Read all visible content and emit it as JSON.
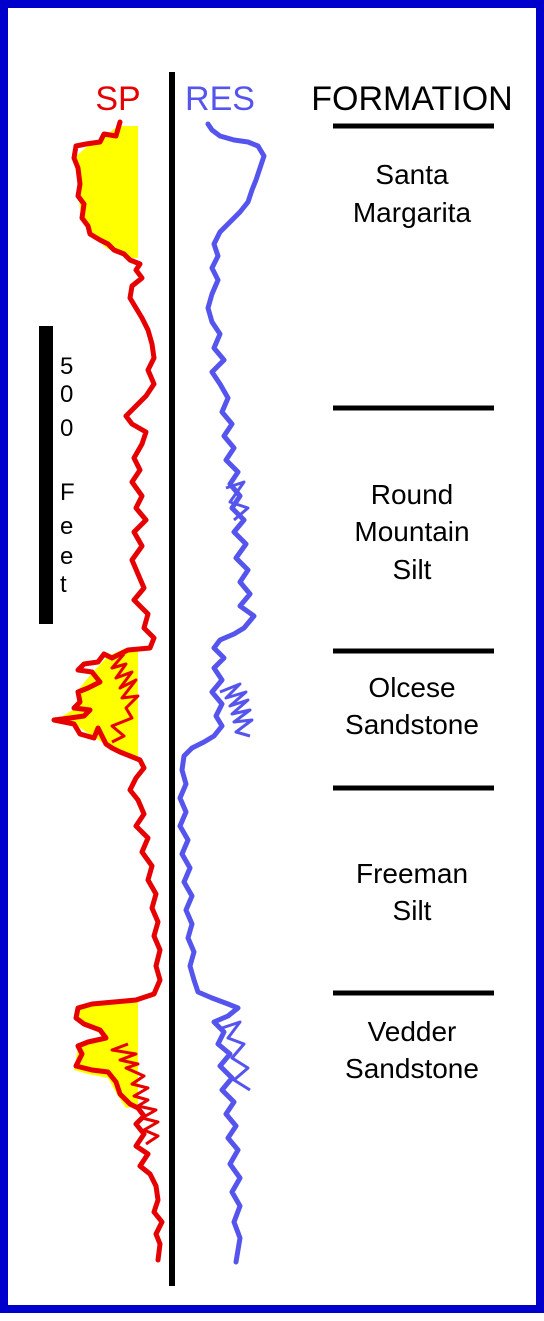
{
  "headers": {
    "sp": "SP",
    "res": "RES",
    "formation": "FORMATION"
  },
  "colors": {
    "border": "#0000cc",
    "sp_curve": "#e60000",
    "res_curve": "#5555ee",
    "sand_fill": "#ffff00",
    "lines": "#000000"
  },
  "scale_bar": {
    "chars": [
      "5",
      "0",
      "0",
      "F",
      "e",
      "e",
      "t"
    ]
  },
  "formations": [
    {
      "name": "Santa Margarita",
      "lines": [
        "Santa",
        "Margarita"
      ]
    },
    {
      "name": "Round Mountain Silt",
      "lines": [
        "Round",
        "Mountain",
        "Silt"
      ]
    },
    {
      "name": "Olcese Sandstone",
      "lines": [
        "Olcese",
        "Sandstone"
      ]
    },
    {
      "name": "Freeman Silt",
      "lines": [
        "Freeman",
        "Silt"
      ]
    },
    {
      "name": "Vedder Sandstone",
      "lines": [
        "Vedder",
        "Sandstone"
      ]
    }
  ]
}
